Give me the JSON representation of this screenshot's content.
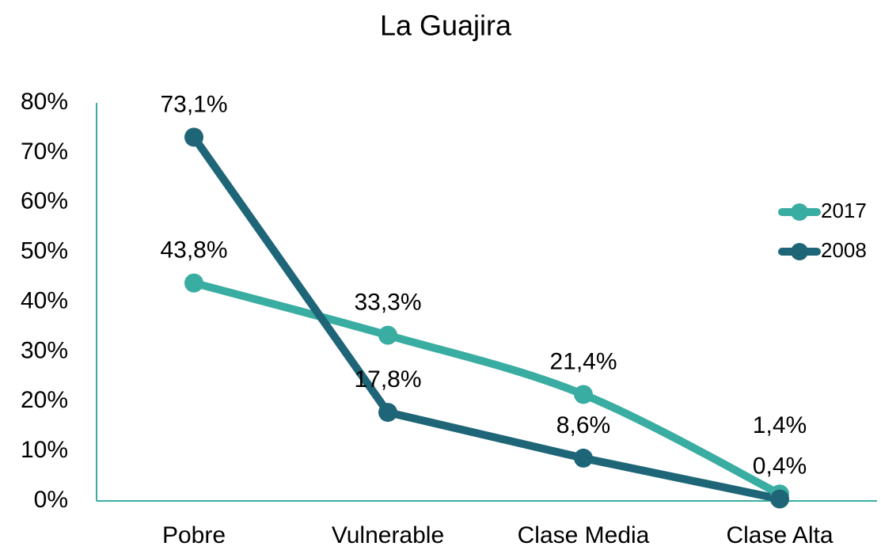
{
  "chart_data": {
    "type": "line",
    "title": "La Guajira",
    "categories": [
      "Pobre",
      "Vulnerable",
      "Clase Media",
      "Clase Alta"
    ],
    "series": [
      {
        "name": "2017",
        "color": "#3aada2",
        "values": [
          43.8,
          33.3,
          21.4,
          1.4
        ],
        "value_labels": [
          "43,8%",
          "33,3%",
          "21,4%",
          "1,4%"
        ]
      },
      {
        "name": "2008",
        "color": "#1e6677",
        "values": [
          73.1,
          17.8,
          8.6,
          0.4
        ],
        "value_labels": [
          "73,1%",
          "17,8%",
          "8,6%",
          "0,4%"
        ]
      }
    ],
    "ylim": [
      0,
      80
    ],
    "yticks": [
      {
        "value": 0,
        "label": "0%"
      },
      {
        "value": 10,
        "label": "10%"
      },
      {
        "value": 20,
        "label": "20%"
      },
      {
        "value": 30,
        "label": "30%"
      },
      {
        "value": 40,
        "label": "40%"
      },
      {
        "value": 50,
        "label": "50%"
      },
      {
        "value": 60,
        "label": "60%"
      },
      {
        "value": 70,
        "label": "70%"
      },
      {
        "value": 80,
        "label": "80%"
      }
    ],
    "legend": "right"
  }
}
